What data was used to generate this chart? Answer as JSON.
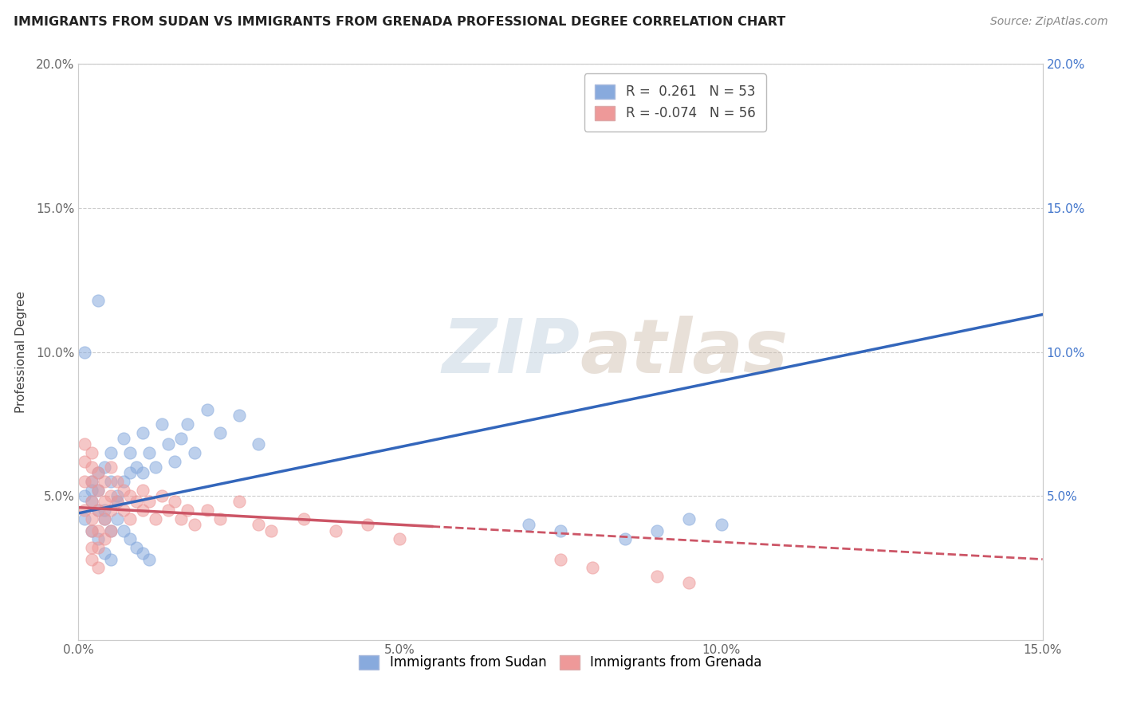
{
  "title": "IMMIGRANTS FROM SUDAN VS IMMIGRANTS FROM GRENADA PROFESSIONAL DEGREE CORRELATION CHART",
  "source_text": "Source: ZipAtlas.com",
  "ylabel": "Professional Degree",
  "xlim": [
    0.0,
    0.15
  ],
  "ylim": [
    0.0,
    0.2
  ],
  "xtick_values": [
    0.0,
    0.05,
    0.1,
    0.15
  ],
  "ytick_values": [
    0.05,
    0.1,
    0.15,
    0.2
  ],
  "sudan_color": "#88AADD",
  "grenada_color": "#EE9999",
  "sudan_R": 0.261,
  "sudan_N": 53,
  "grenada_R": -0.074,
  "grenada_N": 56,
  "sudan_line_color": "#3366BB",
  "grenada_line_color": "#CC5566",
  "watermark_zip": "ZIP",
  "watermark_atlas": "atlas",
  "legend_label_sudan": "Immigrants from Sudan",
  "legend_label_grenada": "Immigrants from Grenada",
  "sudan_line_y0": 0.044,
  "sudan_line_y1": 0.113,
  "grenada_line_solid_x0": 0.0,
  "grenada_line_solid_x1": 0.055,
  "grenada_line_y0": 0.046,
  "grenada_line_y1": 0.038,
  "grenada_line_full_y1": 0.028,
  "sudan_points": [
    [
      0.001,
      0.05
    ],
    [
      0.002,
      0.055
    ],
    [
      0.002,
      0.048
    ],
    [
      0.003,
      0.052
    ],
    [
      0.003,
      0.058
    ],
    [
      0.004,
      0.06
    ],
    [
      0.004,
      0.045
    ],
    [
      0.005,
      0.055
    ],
    [
      0.005,
      0.065
    ],
    [
      0.006,
      0.05
    ],
    [
      0.006,
      0.048
    ],
    [
      0.007,
      0.07
    ],
    [
      0.007,
      0.055
    ],
    [
      0.008,
      0.065
    ],
    [
      0.008,
      0.058
    ],
    [
      0.009,
      0.06
    ],
    [
      0.01,
      0.058
    ],
    [
      0.01,
      0.072
    ],
    [
      0.011,
      0.065
    ],
    [
      0.012,
      0.06
    ],
    [
      0.013,
      0.075
    ],
    [
      0.014,
      0.068
    ],
    [
      0.015,
      0.062
    ],
    [
      0.016,
      0.07
    ],
    [
      0.017,
      0.075
    ],
    [
      0.018,
      0.065
    ],
    [
      0.02,
      0.08
    ],
    [
      0.022,
      0.072
    ],
    [
      0.025,
      0.078
    ],
    [
      0.028,
      0.068
    ],
    [
      0.001,
      0.1
    ],
    [
      0.003,
      0.118
    ],
    [
      0.002,
      0.052
    ],
    [
      0.003,
      0.045
    ],
    [
      0.004,
      0.042
    ],
    [
      0.005,
      0.038
    ],
    [
      0.006,
      0.042
    ],
    [
      0.007,
      0.038
    ],
    [
      0.008,
      0.035
    ],
    [
      0.009,
      0.032
    ],
    [
      0.01,
      0.03
    ],
    [
      0.011,
      0.028
    ],
    [
      0.001,
      0.042
    ],
    [
      0.002,
      0.038
    ],
    [
      0.003,
      0.035
    ],
    [
      0.004,
      0.03
    ],
    [
      0.005,
      0.028
    ],
    [
      0.07,
      0.04
    ],
    [
      0.075,
      0.038
    ],
    [
      0.09,
      0.038
    ],
    [
      0.085,
      0.035
    ],
    [
      0.095,
      0.042
    ],
    [
      0.1,
      0.04
    ]
  ],
  "grenada_points": [
    [
      0.001,
      0.045
    ],
    [
      0.001,
      0.055
    ],
    [
      0.001,
      0.062
    ],
    [
      0.001,
      0.068
    ],
    [
      0.002,
      0.048
    ],
    [
      0.002,
      0.055
    ],
    [
      0.002,
      0.06
    ],
    [
      0.002,
      0.065
    ],
    [
      0.002,
      0.042
    ],
    [
      0.002,
      0.038
    ],
    [
      0.002,
      0.032
    ],
    [
      0.002,
      0.028
    ],
    [
      0.003,
      0.052
    ],
    [
      0.003,
      0.058
    ],
    [
      0.003,
      0.045
    ],
    [
      0.003,
      0.038
    ],
    [
      0.003,
      0.032
    ],
    [
      0.003,
      0.025
    ],
    [
      0.004,
      0.055
    ],
    [
      0.004,
      0.048
    ],
    [
      0.004,
      0.042
    ],
    [
      0.004,
      0.035
    ],
    [
      0.005,
      0.06
    ],
    [
      0.005,
      0.05
    ],
    [
      0.005,
      0.045
    ],
    [
      0.005,
      0.038
    ],
    [
      0.006,
      0.055
    ],
    [
      0.006,
      0.048
    ],
    [
      0.007,
      0.052
    ],
    [
      0.007,
      0.045
    ],
    [
      0.008,
      0.05
    ],
    [
      0.008,
      0.042
    ],
    [
      0.009,
      0.048
    ],
    [
      0.01,
      0.052
    ],
    [
      0.01,
      0.045
    ],
    [
      0.011,
      0.048
    ],
    [
      0.012,
      0.042
    ],
    [
      0.013,
      0.05
    ],
    [
      0.014,
      0.045
    ],
    [
      0.015,
      0.048
    ],
    [
      0.016,
      0.042
    ],
    [
      0.017,
      0.045
    ],
    [
      0.018,
      0.04
    ],
    [
      0.02,
      0.045
    ],
    [
      0.022,
      0.042
    ],
    [
      0.025,
      0.048
    ],
    [
      0.028,
      0.04
    ],
    [
      0.03,
      0.038
    ],
    [
      0.035,
      0.042
    ],
    [
      0.04,
      0.038
    ],
    [
      0.045,
      0.04
    ],
    [
      0.05,
      0.035
    ],
    [
      0.075,
      0.028
    ],
    [
      0.08,
      0.025
    ],
    [
      0.09,
      0.022
    ],
    [
      0.095,
      0.02
    ]
  ]
}
